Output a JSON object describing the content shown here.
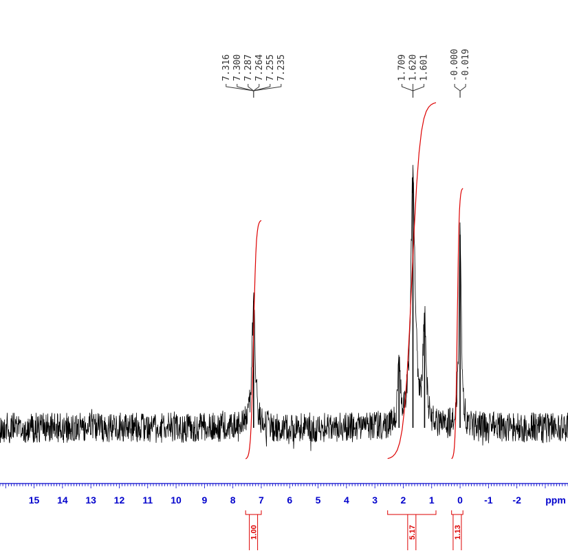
{
  "colors": {
    "trace": "#000000",
    "axis": "#0000cc",
    "integral": "#dd0000",
    "peak_label": "#333333"
  },
  "chart_data": {
    "type": "line",
    "title": "",
    "xlabel": "ppm",
    "ylabel": "",
    "x_reversed": true,
    "xlim": [
      16.2,
      -3.8
    ],
    "grid": false,
    "x_ticks": [
      15,
      14,
      13,
      12,
      11,
      10,
      9,
      8,
      7,
      6,
      5,
      4,
      3,
      2,
      1,
      0,
      -1,
      -2
    ],
    "x_tick_labels": [
      "15",
      "14",
      "13",
      "12",
      "11",
      "10",
      "9",
      "8",
      "7",
      "6",
      "5",
      "4",
      "3",
      "2",
      "1",
      "0",
      "-1",
      "-2"
    ],
    "series": [
      {
        "peaks": [
          {
            "ppm": 7.27,
            "relative_height": 0.44,
            "width_ppm": 0.07
          },
          {
            "ppm": 1.66,
            "relative_height": 0.87,
            "width_ppm": 0.09
          },
          {
            "ppm": 1.25,
            "relative_height": 0.37,
            "width_ppm": 0.06
          },
          {
            "ppm": 2.15,
            "relative_height": 0.23,
            "width_ppm": 0.05
          },
          {
            "ppm": 0.0,
            "relative_height": 0.67,
            "width_ppm": 0.05
          }
        ]
      }
    ],
    "peak_label_groups": [
      {
        "labels": [
          "7.316",
          "7.300",
          "7.287",
          "7.264",
          "7.255",
          "7.235"
        ],
        "center_ppm": 7.27
      },
      {
        "labels": [
          "1.709",
          "1.620",
          "1.601"
        ],
        "center_ppm": 1.66
      },
      {
        "labels": [
          "-0.000",
          "-0.019"
        ],
        "center_ppm": 0.0
      }
    ],
    "integrals": [
      {
        "from_ppm": 7.55,
        "to_ppm": 7.0,
        "value": "1.00",
        "relative_height": 0.67
      },
      {
        "from_ppm": 2.55,
        "to_ppm": 0.85,
        "value": "5.17",
        "relative_height": 1.0
      },
      {
        "from_ppm": 0.3,
        "to_ppm": -0.1,
        "value": "1.13",
        "relative_height": 0.76
      }
    ]
  }
}
